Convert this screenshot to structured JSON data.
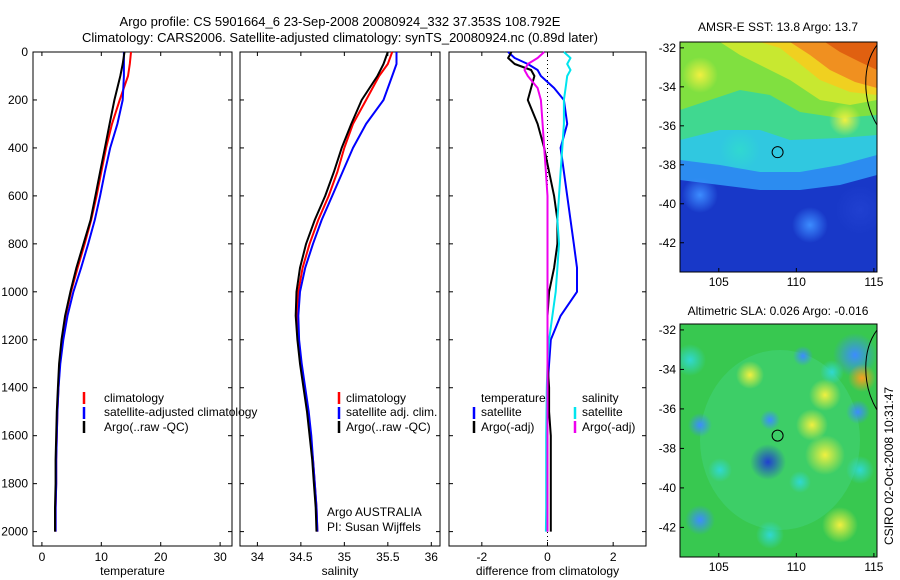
{
  "figure": {
    "title_line1": "Argo profile: CS 5901664_6 23-Sep-2008 20080924_332 37.353S 108.792E",
    "title_line2": "Climatology: CARS2006. Satellite-adjusted climatology: synTS_20080924.nc (0.89d later)",
    "credit": "CSIRO 02-Oct-2008 10:31:47",
    "colors": {
      "climatology": "#ff0000",
      "satellite": "#0000ff",
      "argo": "#000000",
      "cyan": "#00e5ee",
      "magenta": "#ee00ee"
    }
  },
  "chart_data": [
    {
      "type": "line",
      "xlabel": "temperature",
      "xlim": [
        -1.5,
        32
      ],
      "xticks": [
        0,
        10,
        20,
        30
      ],
      "ylim": [
        0,
        2060
      ],
      "yticks": [
        0,
        200,
        400,
        600,
        800,
        1000,
        1200,
        1400,
        1600,
        1800,
        2000
      ],
      "y_reversed": true,
      "legend": [
        "climatology",
        "satellite-adjusted climatology",
        "Argo(..raw -QC)"
      ],
      "legend_position": "lower-right",
      "depth": [
        0,
        50,
        100,
        200,
        300,
        400,
        500,
        600,
        700,
        800,
        900,
        1000,
        1100,
        1200,
        1300,
        1400,
        1500,
        1600,
        1700,
        1800,
        1900,
        2000
      ],
      "series": [
        {
          "name": "climatology",
          "color": "#ff0000",
          "values": [
            15.0,
            14.8,
            14.5,
            13.1,
            11.8,
            10.8,
            10.0,
            9.2,
            8.3,
            7.2,
            6.0,
            4.9,
            4.0,
            3.4,
            3.0,
            2.8,
            2.6,
            2.5,
            2.4,
            2.4,
            2.3,
            2.3
          ]
        },
        {
          "name": "satellite-adjusted climatology",
          "color": "#0000ff",
          "values": [
            13.8,
            13.8,
            13.8,
            13.6,
            12.7,
            11.5,
            10.6,
            9.8,
            8.9,
            7.8,
            6.6,
            5.3,
            4.3,
            3.6,
            3.1,
            2.8,
            2.6,
            2.5,
            2.4,
            2.4,
            2.3,
            2.3
          ]
        },
        {
          "name": "Argo(..raw -QC)",
          "color": "#000000",
          "values": [
            13.9,
            13.6,
            13.2,
            12.2,
            11.4,
            10.6,
            9.8,
            9.0,
            8.2,
            7.0,
            5.8,
            4.8,
            3.9,
            3.3,
            2.9,
            2.7,
            2.5,
            2.4,
            2.3,
            2.3,
            2.2,
            2.2
          ]
        }
      ]
    },
    {
      "type": "line",
      "xlabel": "salinity",
      "xlim": [
        33.8,
        36.1
      ],
      "xticks": [
        34,
        34.5,
        35,
        35.5,
        36
      ],
      "ylim": [
        0,
        2060
      ],
      "y_reversed": true,
      "legend": [
        "climatology",
        "satellite adj. clim.",
        "Argo(..raw -QC)"
      ],
      "legend_position": "lower-right",
      "annotations": [
        "Argo AUSTRALIA",
        "PI: Susan Wijffels"
      ],
      "depth": [
        0,
        50,
        100,
        200,
        300,
        400,
        500,
        600,
        700,
        800,
        900,
        1000,
        1100,
        1200,
        1300,
        1400,
        1500,
        1600,
        1700,
        1800,
        1900,
        2000
      ],
      "series": [
        {
          "name": "climatology",
          "color": "#ff0000",
          "values": [
            35.55,
            35.5,
            35.4,
            35.25,
            35.1,
            35.0,
            34.92,
            34.82,
            34.7,
            34.6,
            34.52,
            34.47,
            34.45,
            34.47,
            34.5,
            34.54,
            34.58,
            34.61,
            34.64,
            34.66,
            34.68,
            34.69
          ]
        },
        {
          "name": "satellite adj. clim.",
          "color": "#0000ff",
          "values": [
            35.6,
            35.6,
            35.55,
            35.45,
            35.25,
            35.1,
            34.98,
            34.86,
            34.74,
            34.64,
            34.55,
            34.49,
            34.47,
            34.48,
            34.51,
            34.55,
            34.59,
            34.62,
            34.64,
            34.66,
            34.68,
            34.69
          ]
        },
        {
          "name": "Argo(..raw -QC)",
          "color": "#000000",
          "values": [
            35.5,
            35.45,
            35.38,
            35.2,
            35.08,
            34.97,
            34.88,
            34.78,
            34.66,
            34.56,
            34.49,
            34.45,
            34.44,
            34.46,
            34.49,
            34.53,
            34.57,
            34.6,
            34.63,
            34.65,
            34.67,
            34.68
          ]
        }
      ]
    },
    {
      "type": "line",
      "xlabel": "difference from climatology",
      "xlim": [
        -3.0,
        3.0
      ],
      "xticks": [
        -2,
        0,
        2
      ],
      "ylim": [
        0,
        2060
      ],
      "y_reversed": true,
      "legend": [
        "temperature",
        "satellite",
        "Argo(-adj)",
        "salinity",
        "satellite",
        "Argo(-adj)"
      ],
      "legend_position": "lower-right",
      "depth": [
        0,
        25,
        50,
        75,
        100,
        150,
        200,
        300,
        400,
        500,
        600,
        700,
        800,
        900,
        1000,
        1100,
        1200,
        1300,
        1400,
        1500,
        1600,
        1700,
        1800,
        1900,
        2000
      ],
      "series": [
        {
          "name": "temperature satellite",
          "color": "#0000ff",
          "values": [
            -1.2,
            -1.0,
            -0.6,
            -0.3,
            -0.2,
            0.2,
            0.5,
            0.6,
            0.4,
            0.5,
            0.6,
            0.7,
            0.8,
            0.9,
            0.9,
            0.4,
            0.1,
            0.05,
            0.0,
            0.0,
            0.0,
            0.0,
            0.0,
            0.0,
            0.0
          ]
        },
        {
          "name": "temperature Argo(-adj)",
          "color": "#000000",
          "values": [
            -1.1,
            -1.2,
            -1.0,
            -0.5,
            -0.4,
            -0.5,
            -0.6,
            -0.3,
            -0.1,
            0.05,
            0.2,
            0.3,
            0.3,
            0.2,
            0.05,
            0.0,
            0.0,
            0.0,
            0.05,
            0.05,
            0.1,
            0.1,
            0.1,
            0.1,
            0.1
          ]
        },
        {
          "name": "salinity satellite",
          "color": "#00e5ee",
          "values": [
            0.5,
            0.7,
            0.6,
            0.7,
            0.6,
            0.55,
            0.5,
            0.5,
            0.45,
            0.4,
            0.35,
            0.3,
            0.35,
            0.3,
            0.25,
            0.15,
            0.05,
            0.0,
            -0.02,
            -0.03,
            -0.04,
            -0.04,
            -0.04,
            -0.04,
            -0.05
          ]
        },
        {
          "name": "salinity Argo(-adj)",
          "color": "#ee00ee",
          "values": [
            -0.1,
            -0.3,
            -0.6,
            -0.7,
            -0.6,
            -0.3,
            -0.2,
            -0.15,
            -0.1,
            -0.05,
            0.0,
            0.0,
            0.0,
            0.0,
            0.0,
            0.0,
            0.0,
            0.0,
            0.0,
            0.0,
            0.0,
            0.0,
            0.0,
            0.0,
            0.0
          ]
        }
      ]
    },
    {
      "type": "heatmap",
      "title": "AMSR-E SST: 13.8 Argo: 13.7",
      "xlim": [
        102.5,
        115.2
      ],
      "ylim": [
        -43.5,
        -31.7
      ],
      "xticks": [
        105,
        110,
        115
      ],
      "yticks": [
        -32,
        -34,
        -36,
        -38,
        -40,
        -42
      ],
      "marker": {
        "lon": 108.792,
        "lat": -37.353
      }
    },
    {
      "type": "heatmap",
      "title": "Altimetric SLA: 0.026 Argo: -0.016",
      "xlim": [
        102.5,
        115.2
      ],
      "ylim": [
        -43.5,
        -31.7
      ],
      "xticks": [
        105,
        110,
        115
      ],
      "yticks": [
        -32,
        -34,
        -36,
        -38,
        -40,
        -42
      ],
      "marker": {
        "lon": 108.792,
        "lat": -37.353
      }
    }
  ]
}
